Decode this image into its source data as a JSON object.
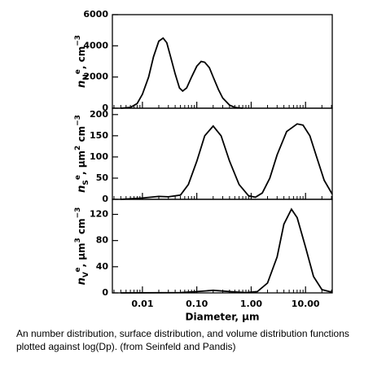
{
  "chart_data": [
    {
      "type": "line",
      "log_x": true,
      "color": "#000000",
      "ylabel": [
        {
          "text": "n",
          "pos": "base"
        },
        {
          "text": "N",
          "pos": "sub"
        },
        {
          "text": "e",
          "pos": "sup"
        },
        {
          "text": ", cm",
          "pos": "base"
        },
        {
          "text": "−3",
          "pos": "sup"
        }
      ],
      "x": [
        0.004,
        0.006,
        0.008,
        0.01,
        0.013,
        0.016,
        0.02,
        0.024,
        0.028,
        0.033,
        0.04,
        0.048,
        0.055,
        0.065,
        0.08,
        0.1,
        0.12,
        0.14,
        0.17,
        0.2,
        0.25,
        0.3,
        0.4,
        0.5,
        0.7
      ],
      "values": [
        0,
        50,
        300,
        900,
        2000,
        3300,
        4300,
        4500,
        4200,
        3300,
        2200,
        1300,
        1100,
        1300,
        2000,
        2700,
        3000,
        2950,
        2600,
        2000,
        1200,
        650,
        200,
        50,
        0
      ],
      "xlim": [
        0.0028,
        31
      ],
      "xticks": [
        0.01,
        0.1,
        1,
        10
      ],
      "xminor": [
        0.003,
        0.004,
        0.005,
        0.006,
        0.007,
        0.008,
        0.009,
        0.02,
        0.03,
        0.04,
        0.05,
        0.06,
        0.07,
        0.08,
        0.09,
        0.2,
        0.3,
        0.4,
        0.5,
        0.6,
        0.7,
        0.8,
        0.9,
        2,
        3,
        4,
        5,
        6,
        7,
        8,
        9,
        20,
        30
      ],
      "ylim": [
        0,
        6000
      ],
      "yticks": [
        0,
        2000,
        4000,
        6000
      ]
    },
    {
      "type": "line",
      "log_x": true,
      "color": "#000000",
      "ylabel": [
        {
          "text": "n",
          "pos": "base"
        },
        {
          "text": "S",
          "pos": "sub"
        },
        {
          "text": "e",
          "pos": "sup"
        },
        {
          "text": ",  μm",
          "pos": "base"
        },
        {
          "text": "2",
          "pos": "sup"
        },
        {
          "text": " cm",
          "pos": "base"
        },
        {
          "text": "−3",
          "pos": "sup"
        }
      ],
      "x": [
        0.004,
        0.01,
        0.02,
        0.03,
        0.05,
        0.07,
        0.1,
        0.14,
        0.2,
        0.28,
        0.4,
        0.6,
        0.9,
        1.2,
        1.6,
        2.2,
        3,
        4.5,
        7,
        9,
        12,
        16,
        22,
        31
      ],
      "values": [
        0,
        3,
        7,
        6,
        10,
        35,
        90,
        150,
        173,
        150,
        90,
        35,
        8,
        5,
        15,
        50,
        105,
        160,
        178,
        175,
        150,
        100,
        45,
        12
      ],
      "xlim": [
        0.0028,
        31
      ],
      "xticks": [
        0.01,
        0.1,
        1,
        10
      ],
      "xminor": [
        0.003,
        0.004,
        0.005,
        0.006,
        0.007,
        0.008,
        0.009,
        0.02,
        0.03,
        0.04,
        0.05,
        0.06,
        0.07,
        0.08,
        0.09,
        0.2,
        0.3,
        0.4,
        0.5,
        0.6,
        0.7,
        0.8,
        0.9,
        2,
        3,
        4,
        5,
        6,
        7,
        8,
        9,
        20,
        30
      ],
      "ylim": [
        0,
        215
      ],
      "yticks": [
        0,
        50,
        100,
        150,
        200
      ]
    },
    {
      "type": "line",
      "log_x": true,
      "color": "#000000",
      "ylabel": [
        {
          "text": "n",
          "pos": "base"
        },
        {
          "text": "V",
          "pos": "sub"
        },
        {
          "text": "e",
          "pos": "sup"
        },
        {
          "text": ",  μm",
          "pos": "base"
        },
        {
          "text": "3",
          "pos": "sup"
        },
        {
          "text": " cm",
          "pos": "base"
        },
        {
          "text": "−3",
          "pos": "sup"
        }
      ],
      "x": [
        0.004,
        0.05,
        0.1,
        0.2,
        0.4,
        0.8,
        1.3,
        2,
        3,
        4,
        5.5,
        7,
        10,
        14,
        20,
        31
      ],
      "values": [
        0,
        0.5,
        2,
        4,
        2,
        0.5,
        2,
        15,
        55,
        105,
        128,
        115,
        70,
        25,
        5,
        1
      ],
      "xlim": [
        0.0028,
        31
      ],
      "xticks": [
        {
          "value": 0.01,
          "label": "0.01"
        },
        {
          "value": 0.1,
          "label": "0.10"
        },
        {
          "value": 1,
          "label": "1.00"
        },
        {
          "value": 10,
          "label": "10.00"
        }
      ],
      "xminor": [
        0.003,
        0.004,
        0.005,
        0.006,
        0.007,
        0.008,
        0.009,
        0.02,
        0.03,
        0.04,
        0.05,
        0.06,
        0.07,
        0.08,
        0.09,
        0.2,
        0.3,
        0.4,
        0.5,
        0.6,
        0.7,
        0.8,
        0.9,
        2,
        3,
        4,
        5,
        6,
        7,
        8,
        9,
        20,
        30
      ],
      "ylim": [
        0,
        143
      ],
      "yticks": [
        0,
        40,
        80,
        120
      ],
      "xlabel": "Diameter,  μm"
    }
  ],
  "caption": [
    "An number distribution, surface distribution, and volume distribution functions",
    "plotted against log(Dp).  (from Seinfeld and Pandis)"
  ]
}
